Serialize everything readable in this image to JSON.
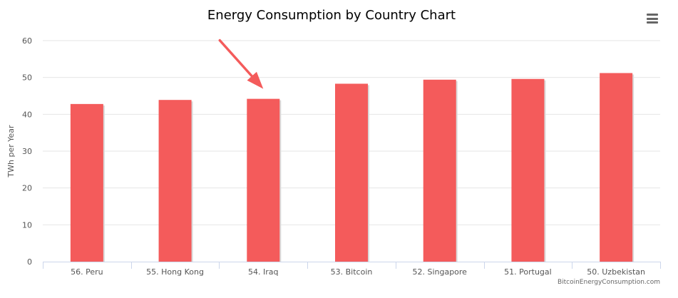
{
  "chart_data": {
    "type": "bar",
    "title": "Energy Consumption by Country Chart",
    "xlabel": "",
    "ylabel": "TWh per Year",
    "categories": [
      "56. Peru",
      "55. Hong Kong",
      "54. Iraq",
      "53. Bitcoin",
      "52. Singapore",
      "51. Portugal",
      "50. Uzbekistan"
    ],
    "values": [
      42.8,
      43.9,
      44.2,
      48.3,
      49.4,
      49.6,
      51.2
    ],
    "ylim": [
      0,
      60
    ],
    "yticks": [
      0,
      10,
      20,
      30,
      40,
      50,
      60
    ],
    "bar_color": "#f45b5b",
    "grid": true,
    "legend": "none",
    "annotation": {
      "type": "arrow",
      "target": "54. Iraq",
      "color": "#f45b5b"
    },
    "credit": "BitcoinEnergyConsumption.com"
  },
  "menu": {
    "icon": "hamburger-menu-icon"
  }
}
